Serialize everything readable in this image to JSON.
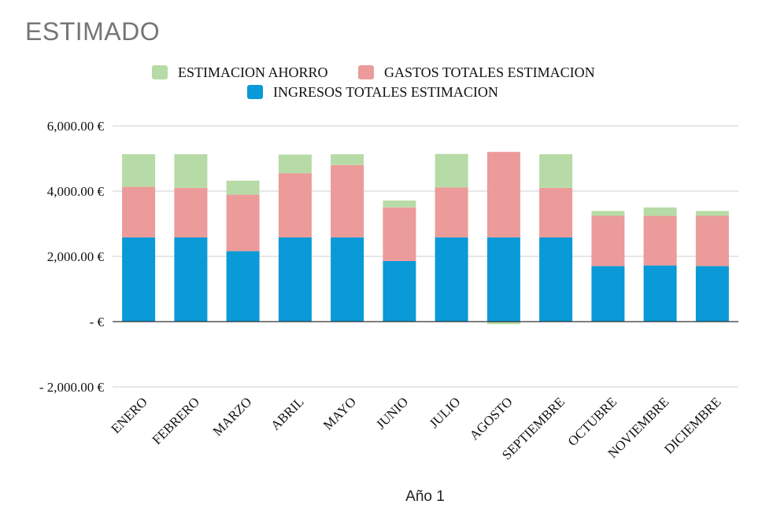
{
  "chart_data": {
    "type": "bar",
    "stacked": true,
    "title": "ESTIMADO",
    "xlabel": "Año 1",
    "ylabel": "",
    "ylim": [
      -2000,
      6000
    ],
    "yticks": [
      6000,
      4000,
      2000,
      0,
      -2000
    ],
    "ytick_labels": [
      "6,000.00 €",
      "4,000.00 €",
      "2,000.00 €",
      "-  €",
      "- 2,000.00 €"
    ],
    "legend_position": "top-center",
    "categories": [
      "ENERO",
      "FEBRERO",
      "MARZO",
      "ABRIL",
      "MAYO",
      "JUNIO",
      "JULIO",
      "AGOSTO",
      "SEPTIEMBRE",
      "OCTUBRE",
      "NOVIEMBRE",
      "DICIEMBRE"
    ],
    "series": [
      {
        "name": "INGRESOS TOTALES ESTIMACION",
        "color": "#0a9ad7",
        "values": [
          2580,
          2580,
          2160,
          2580,
          2580,
          1860,
          2580,
          2580,
          2580,
          1700,
          1720,
          1700
        ]
      },
      {
        "name": "GASTOS TOTALES ESTIMACION",
        "color": "#eb9b99",
        "values": [
          1550,
          1520,
          1730,
          1970,
          2220,
          1640,
          1530,
          2620,
          1520,
          1540,
          1520,
          1540
        ]
      },
      {
        "name": "ESTIMACION AHORRO",
        "color": "#b7dba6",
        "values": [
          1000,
          1030,
          430,
          570,
          330,
          210,
          1030,
          -80,
          1030,
          150,
          260,
          150
        ]
      }
    ],
    "legend_order": [
      "ESTIMACION AHORRO",
      "GASTOS TOTALES ESTIMACION",
      "INGRESOS TOTALES ESTIMACION"
    ]
  }
}
